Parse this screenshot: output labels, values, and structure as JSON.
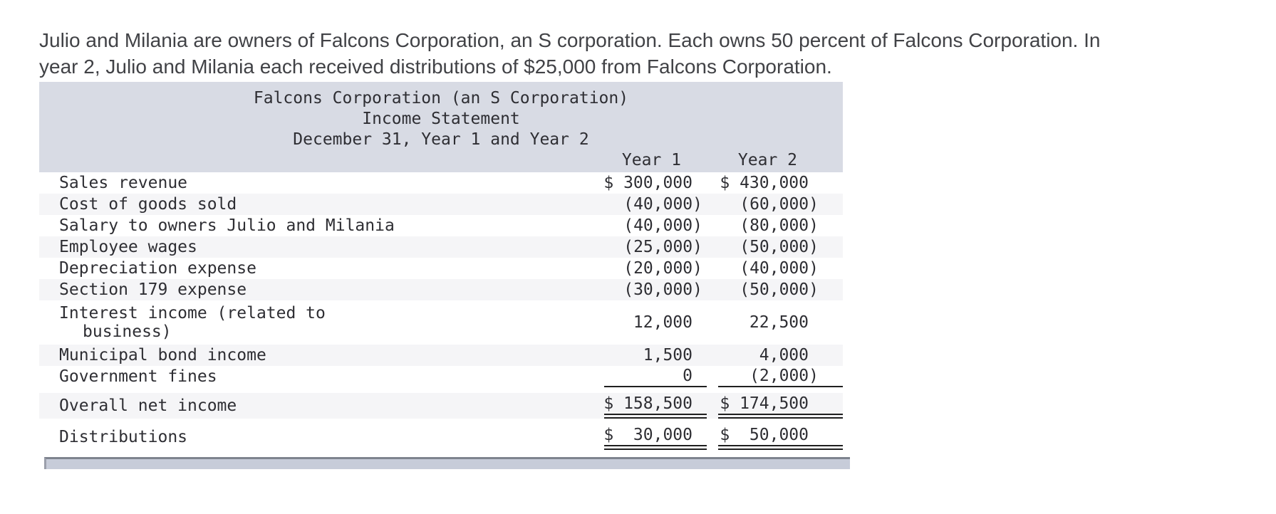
{
  "intro": {
    "line1": "Julio and Milania are owners of Falcons Corporation, an S corporation. Each owns 50 percent of Falcons Corporation. In",
    "line2": "year 2, Julio and Milania each received distributions of $25,000 from Falcons Corporation."
  },
  "statement": {
    "title_lines": [
      "Falcons Corporation (an S Corporation)",
      "Income Statement",
      "December 31, Year 1 and Year 2"
    ],
    "columns": {
      "year1": "Year 1",
      "year2": "Year 2"
    },
    "rows": [
      {
        "label": "Sales revenue",
        "year1": "$ 300,000",
        "year2": "$ 430,000"
      },
      {
        "label": "Cost of goods sold",
        "year1": "(40,000)",
        "year2": "(60,000)"
      },
      {
        "label": "Salary to owners Julio and Milania",
        "year1": "(40,000)",
        "year2": "(80,000)"
      },
      {
        "label": "Employee wages",
        "year1": "(25,000)",
        "year2": "(50,000)"
      },
      {
        "label": "Depreciation expense",
        "year1": "(20,000)",
        "year2": "(40,000)"
      },
      {
        "label": "Section 179 expense",
        "year1": "(30,000)",
        "year2": "(50,000)"
      },
      {
        "label": "Interest income (related to",
        "label2": "business)",
        "year1": "12,000",
        "year2": "22,500"
      },
      {
        "label": "Municipal bond income",
        "year1": "1,500",
        "year2": "4,000"
      },
      {
        "label": "Government fines",
        "year1": "0",
        "year2": "(2,000)"
      },
      {
        "label": "Overall net income",
        "year1": "$ 158,500",
        "year2": "$ 174,500"
      },
      {
        "label": "Distributions",
        "year1": "$  30,000",
        "year2": "$  50,000"
      }
    ],
    "colors": {
      "header_bg": "#d8dbe4",
      "stripe_bg": "#f5f5f7",
      "rule": "#1f1f1f",
      "scrollbar_fill": "#c7ccd9",
      "scrollbar_edge": "#7e838e"
    }
  }
}
